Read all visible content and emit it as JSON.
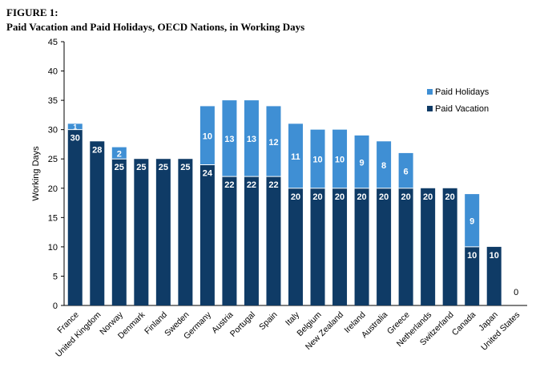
{
  "figure": {
    "number": "FIGURE 1:",
    "title": "Paid Vacation and Paid Holidays, OECD Nations, in Working Days"
  },
  "chart_data": {
    "type": "bar",
    "stacked": true,
    "categories": [
      "France",
      "United Kingdom",
      "Norway",
      "Denmark",
      "Finland",
      "Sweden",
      "Germany",
      "Austria",
      "Portugal",
      "Spain",
      "Italy",
      "Belgium",
      "New Zealand",
      "Ireland",
      "Australia",
      "Greece",
      "Netherlands",
      "Switzerland",
      "Canada",
      "Japan",
      "United States"
    ],
    "series": [
      {
        "name": "Paid Vacation",
        "color": "#0f3b66",
        "values": [
          30,
          28,
          25,
          25,
          25,
          25,
          24,
          22,
          22,
          22,
          20,
          20,
          20,
          20,
          20,
          20,
          20,
          20,
          10,
          10,
          0
        ]
      },
      {
        "name": "Paid Holidays",
        "color": "#3f8fd4",
        "values": [
          1,
          0,
          2,
          0,
          0,
          0,
          10,
          13,
          13,
          12,
          11,
          10,
          10,
          9,
          8,
          6,
          0,
          0,
          9,
          0,
          0
        ]
      }
    ],
    "ylabel": "Working Days",
    "xlabel": "",
    "ylim": [
      0,
      45
    ],
    "yticks": [
      0,
      5,
      10,
      15,
      20,
      25,
      30,
      35,
      40,
      45
    ],
    "legend": {
      "placement": "top-right",
      "entries": [
        "Paid Holidays",
        "Paid Vacation"
      ]
    },
    "grid": false
  }
}
